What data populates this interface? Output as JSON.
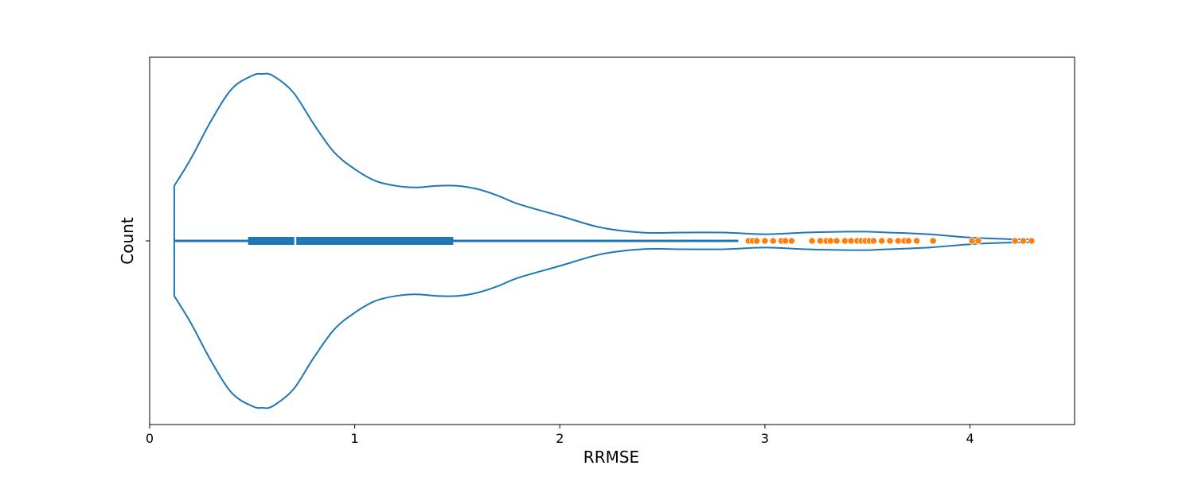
{
  "chart_data": {
    "type": "violin",
    "orientation": "horizontal",
    "xlabel": "RRMSE",
    "ylabel": "Count",
    "xlim": [
      0,
      4.51
    ],
    "x_ticks": [
      0,
      1,
      2,
      3,
      4
    ],
    "x_tick_labels": [
      "0",
      "1",
      "2",
      "3",
      "4"
    ],
    "grid": false,
    "colors": {
      "violin": "#1f77b4",
      "outliers": "#ff7f0e",
      "median": "#ffffff"
    },
    "box": {
      "min": 0.12,
      "q1": 0.48,
      "median": 0.71,
      "q3": 1.48,
      "whisker_high": 2.87
    },
    "density": {
      "x": [
        0.12,
        0.2,
        0.3,
        0.4,
        0.5,
        0.55,
        0.6,
        0.7,
        0.8,
        0.9,
        1.0,
        1.1,
        1.2,
        1.3,
        1.4,
        1.5,
        1.6,
        1.7,
        1.8,
        2.0,
        2.2,
        2.4,
        2.6,
        2.8,
        3.0,
        3.2,
        3.4,
        3.5,
        3.6,
        3.8,
        4.0,
        4.2,
        4.31
      ],
      "relative_width": [
        0.33,
        0.49,
        0.72,
        0.91,
        0.99,
        1.0,
        0.99,
        0.89,
        0.7,
        0.53,
        0.43,
        0.36,
        0.33,
        0.32,
        0.33,
        0.33,
        0.31,
        0.27,
        0.22,
        0.15,
        0.08,
        0.05,
        0.05,
        0.05,
        0.04,
        0.05,
        0.055,
        0.055,
        0.05,
        0.04,
        0.02,
        0.01,
        0.01
      ]
    },
    "outliers": [
      2.92,
      2.94,
      2.96,
      3.0,
      3.04,
      3.08,
      3.1,
      3.13,
      3.23,
      3.27,
      3.3,
      3.32,
      3.35,
      3.39,
      3.42,
      3.45,
      3.47,
      3.49,
      3.51,
      3.53,
      3.57,
      3.61,
      3.65,
      3.68,
      3.7,
      3.74,
      3.82,
      4.01,
      4.04,
      4.22,
      4.26,
      4.3
    ]
  }
}
